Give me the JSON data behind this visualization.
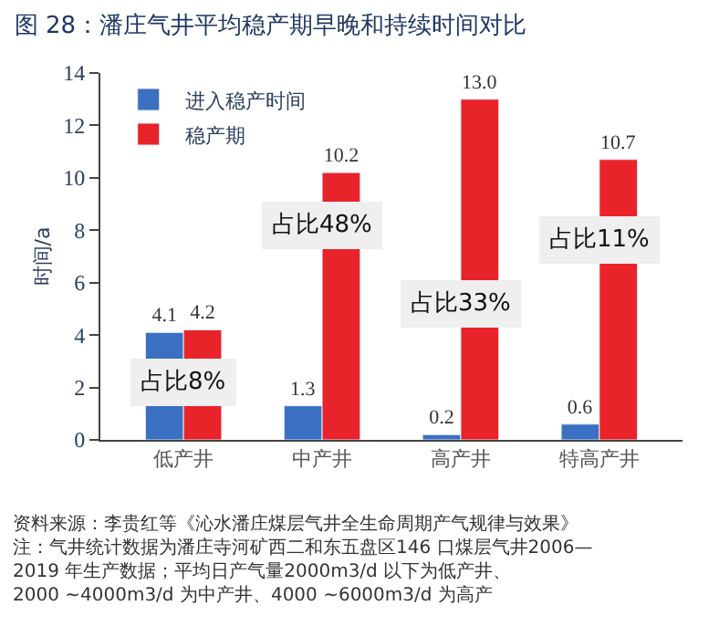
{
  "chart_data": {
    "type": "bar",
    "title": "图 28：潘庄气井平均稳产期早晚和持续时间对比",
    "ylabel": "时间/a",
    "categories": [
      "低产井",
      "中产井",
      "高产井",
      "特高产井"
    ],
    "series": [
      {
        "name": "进入稳产时间",
        "color": "#3b6fc2",
        "values": [
          4.1,
          1.3,
          0.2,
          0.6
        ]
      },
      {
        "name": "稳产期",
        "color": "#e8232a",
        "values": [
          4.2,
          10.2,
          13.0,
          10.7
        ]
      }
    ],
    "value_labels": [
      [
        "4.1",
        "1.3",
        "0.2",
        "0.6"
      ],
      [
        "4.2",
        "10.2",
        "13.0",
        "10.7"
      ]
    ],
    "ylim": [
      0,
      14
    ],
    "yticks": [
      0,
      2,
      4,
      6,
      8,
      10,
      12,
      14
    ],
    "legend": "top left",
    "annotations": [
      {
        "text": "占比8%",
        "x": "低产井",
        "y": 2.2
      },
      {
        "text": "占比48%",
        "x": "中产井",
        "y": 8.2
      },
      {
        "text": "占比33%",
        "x": "高产井",
        "y": 5.2
      },
      {
        "text": "占比11%",
        "x": "特高产井",
        "y": 7.6
      },
      "资料来源：李贵红等《沁水潘庄煤层气井全生命周期产气规律与效果》注：气井统计数据为潘庄寺河矿西二和东五盘区146 口煤层气井2006—2019 年生产数据；平均日产气量2000m3/d 以下为低产井、2000 ~4000m3/d 为中产井、4000 ~6000m3/d 为高产"
    ]
  }
}
